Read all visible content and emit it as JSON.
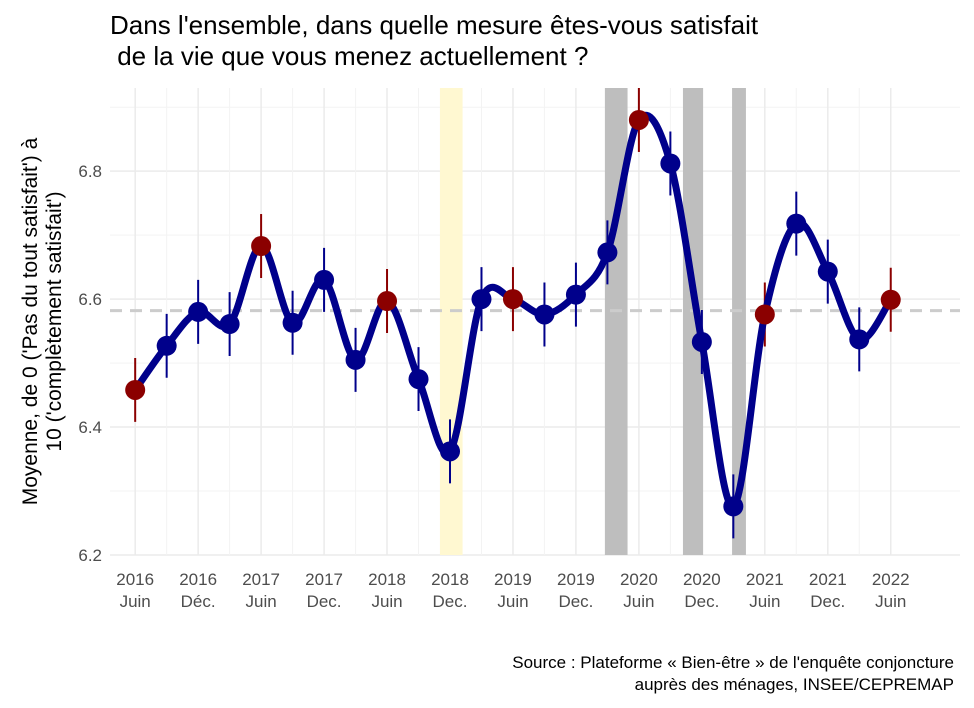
{
  "chart_data": {
    "type": "line",
    "title": "Dans l'ensemble, dans quelle mesure êtes-vous satisfait\n de la vie que vous menez actuellement ?",
    "ylabel": [
      "Moyenne, de 0 ('Pas du tout satisfait') à",
      "10 ('complètement satisfait')"
    ],
    "xlabel": "",
    "source": "Source : Plateforme « Bien-être » de l'enquête conjoncture\nauprès des ménages, INSEE/CEPREMAP",
    "ylim": [
      6.2,
      6.93
    ],
    "xlim": [
      2015.8,
      2022.55
    ],
    "yticks": [
      6.2,
      6.4,
      6.6,
      6.8
    ],
    "xticks": [
      {
        "x": 2016.0,
        "label": "2016\nJuin"
      },
      {
        "x": 2016.5,
        "label": "2016\nDéc."
      },
      {
        "x": 2017.0,
        "label": "2017\nJuin"
      },
      {
        "x": 2017.5,
        "label": "2017\nDec."
      },
      {
        "x": 2018.0,
        "label": "2018\nJuin"
      },
      {
        "x": 2018.5,
        "label": "2018\nDec."
      },
      {
        "x": 2019.0,
        "label": "2019\nJuin"
      },
      {
        "x": 2019.5,
        "label": "2019\nDec."
      },
      {
        "x": 2020.0,
        "label": "2020\nJuin"
      },
      {
        "x": 2020.5,
        "label": "2020\nDec."
      },
      {
        "x": 2021.0,
        "label": "2021\nJuin"
      },
      {
        "x": 2021.5,
        "label": "2021\nDec."
      },
      {
        "x": 2022.0,
        "label": "2022\nJuin"
      }
    ],
    "mean_line": 6.582,
    "shaded_periods": [
      {
        "x0": 2018.42,
        "x1": 2018.6,
        "color": "#FFF8D1"
      },
      {
        "x0": 2019.73,
        "x1": 2019.91,
        "color": "#BEBEBE"
      },
      {
        "x0": 2020.35,
        "x1": 2020.51,
        "color": "#BEBEBE"
      },
      {
        "x0": 2020.74,
        "x1": 2020.85,
        "color": "#BEBEBE"
      }
    ],
    "series": [
      {
        "points": [
          {
            "x": 2016.0,
            "y": 6.458,
            "err": 0.05,
            "highlight": true
          },
          {
            "x": 2016.25,
            "y": 6.527,
            "err": 0.05,
            "highlight": false
          },
          {
            "x": 2016.5,
            "y": 6.58,
            "err": 0.05,
            "highlight": false
          },
          {
            "x": 2016.75,
            "y": 6.561,
            "err": 0.05,
            "highlight": false
          },
          {
            "x": 2017.0,
            "y": 6.683,
            "err": 0.05,
            "highlight": true
          },
          {
            "x": 2017.25,
            "y": 6.563,
            "err": 0.05,
            "highlight": false
          },
          {
            "x": 2017.5,
            "y": 6.63,
            "err": 0.05,
            "highlight": false
          },
          {
            "x": 2017.75,
            "y": 6.505,
            "err": 0.05,
            "highlight": false
          },
          {
            "x": 2018.0,
            "y": 6.597,
            "err": 0.05,
            "highlight": true
          },
          {
            "x": 2018.25,
            "y": 6.475,
            "err": 0.05,
            "highlight": false
          },
          {
            "x": 2018.5,
            "y": 6.362,
            "err": 0.05,
            "highlight": false
          },
          {
            "x": 2018.75,
            "y": 6.6,
            "err": 0.05,
            "highlight": false
          },
          {
            "x": 2019.0,
            "y": 6.6,
            "err": 0.05,
            "highlight": true
          },
          {
            "x": 2019.25,
            "y": 6.576,
            "err": 0.05,
            "highlight": false
          },
          {
            "x": 2019.5,
            "y": 6.607,
            "err": 0.05,
            "highlight": false
          },
          {
            "x": 2019.75,
            "y": 6.673,
            "err": 0.05,
            "highlight": false
          },
          {
            "x": 2020.0,
            "y": 6.88,
            "err": 0.05,
            "highlight": true
          },
          {
            "x": 2020.25,
            "y": 6.812,
            "err": 0.05,
            "highlight": false
          },
          {
            "x": 2020.5,
            "y": 6.533,
            "err": 0.05,
            "highlight": false
          },
          {
            "x": 2020.75,
            "y": 6.276,
            "err": 0.05,
            "highlight": false
          },
          {
            "x": 2021.0,
            "y": 6.576,
            "err": 0.05,
            "highlight": true
          },
          {
            "x": 2021.25,
            "y": 6.718,
            "err": 0.05,
            "highlight": false
          },
          {
            "x": 2021.5,
            "y": 6.643,
            "err": 0.05,
            "highlight": false
          },
          {
            "x": 2021.75,
            "y": 6.537,
            "err": 0.05,
            "highlight": false
          },
          {
            "x": 2022.0,
            "y": 6.599,
            "err": 0.05,
            "highlight": true
          }
        ]
      }
    ],
    "colors": {
      "line": "#00008B",
      "point": "#00008B",
      "highlight_point": "#8B0000",
      "mean_line": "#CCCCCC",
      "grid_major": "#EBEBEB",
      "grid_minor": "#F3F3F3",
      "tick_text": "#4D4D4D"
    },
    "grid": true,
    "legend": "none"
  }
}
